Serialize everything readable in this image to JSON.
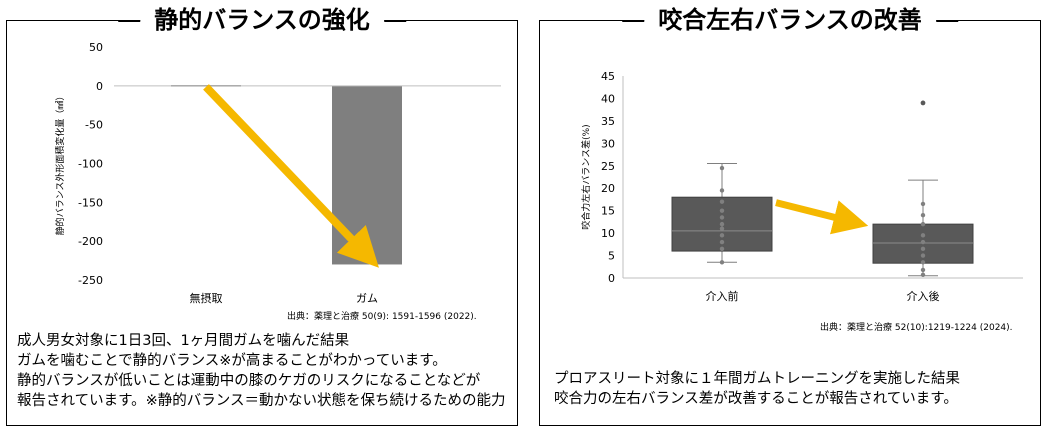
{
  "left": {
    "title": "静的バランスの強化",
    "source": "出典：薬理と治療 50(9): 1591-1596 (2022).",
    "description": [
      "成人男女対象に1日3回、1ヶ月間ガムを噛んだ結果",
      "ガムを噛むことで静的バランス※が高まることがわかっています。",
      "静的バランスが低いことは運動中の膝のケガのリスクになることなどが",
      "報告されています。※静的バランス＝動かない状態を保ち続けるための能力"
    ]
  },
  "right": {
    "title": "咬合左右バランスの改善",
    "source": "出典：薬理と治療 52(10):1219-1224 (2024).",
    "description": [
      "プロアスリート対象に１年間ガムトレーニングを実施した結果",
      "咬合力の左右バランス差が改善することが報告されています。"
    ]
  },
  "colors": {
    "bar": "#7f7f7f",
    "box": "#595959",
    "arrow": "#f5b800",
    "point": "#7f7f7f"
  },
  "chart_data": [
    {
      "type": "bar",
      "categories": [
        "無摂取",
        "ガム"
      ],
      "values": [
        1,
        -230
      ],
      "ylabel": "静的バランス外形面積変化量（㎟）",
      "ylim": [
        -250,
        50
      ],
      "yticks": [
        50,
        0,
        -50,
        -100,
        -150,
        -200,
        -250
      ],
      "annotation": "arrow from 無摂取 to ガム (decrease)"
    },
    {
      "type": "box",
      "categories": [
        "介入前",
        "介入後"
      ],
      "ylabel": "咬合力左右バランス差(%)",
      "ylim": [
        0,
        45
      ],
      "yticks": [
        0,
        5,
        10,
        15,
        20,
        25,
        30,
        35,
        40,
        45
      ],
      "boxes": [
        {
          "name": "介入前",
          "min": 3.5,
          "q1": 6,
          "median": 10.5,
          "q3": 18,
          "max": 25.5,
          "points": [
            3.5,
            6.5,
            8,
            9.5,
            11,
            12,
            13.5,
            15,
            17,
            19.5,
            24.5
          ]
        },
        {
          "name": "介入後",
          "min": 0.5,
          "q1": 3.3,
          "median": 7.8,
          "q3": 12,
          "max": 21.8,
          "outliers": [
            39
          ],
          "points": [
            0.7,
            1.8,
            3.5,
            5,
            6.5,
            8,
            9.5,
            12,
            14,
            16.5
          ]
        }
      ],
      "annotation": "arrow from 介入前 to 介入後 (decrease)"
    }
  ]
}
